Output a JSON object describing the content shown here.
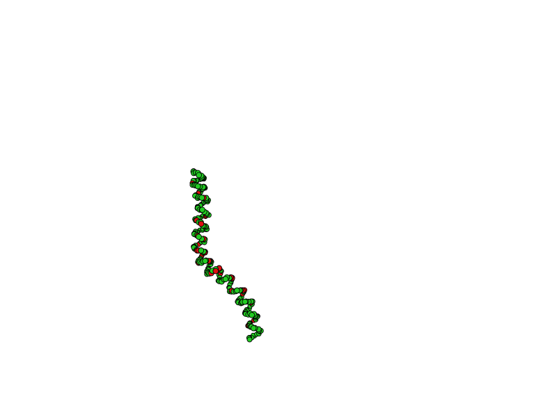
{
  "canvas": {
    "background": "#ffffff"
  },
  "molecule": {
    "style": "space-filling atoms along a coiled helical chain",
    "atom_colors": {
      "carbon": "#22cc22",
      "oxygen": "#dd1111",
      "outline": "#000000"
    }
  }
}
